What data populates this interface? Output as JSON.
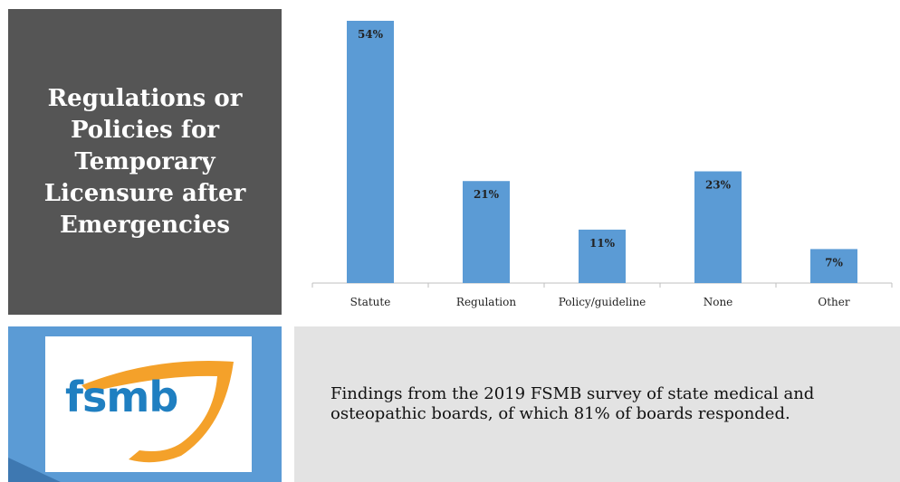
{
  "title": "Regulations or Policies for Temporary Licensure after Emergencies",
  "logo": {
    "text": "fsmb",
    "text_color": "#1f7fc1",
    "shield_color": "#f4a12a"
  },
  "caption": "Findings from the 2019 FSMB survey of state medical and osteopathic boards, of which 81% of boards responded.",
  "colors": {
    "title_bg": "#555555",
    "bar": "#5b9bd5",
    "logo_panel_bg": "#5b9bd5",
    "caption_bg": "#e3e3e3"
  },
  "chart_data": {
    "type": "bar",
    "categories": [
      "Statute",
      "Regulation",
      "Policy/guideline",
      "None",
      "Other"
    ],
    "values": [
      54,
      21,
      11,
      23,
      7
    ],
    "value_labels": [
      "54%",
      "21%",
      "11%",
      "23%",
      "7%"
    ],
    "title": "",
    "xlabel": "",
    "ylabel": "",
    "ylim": [
      0,
      54
    ],
    "grid": false,
    "legend": "none"
  }
}
